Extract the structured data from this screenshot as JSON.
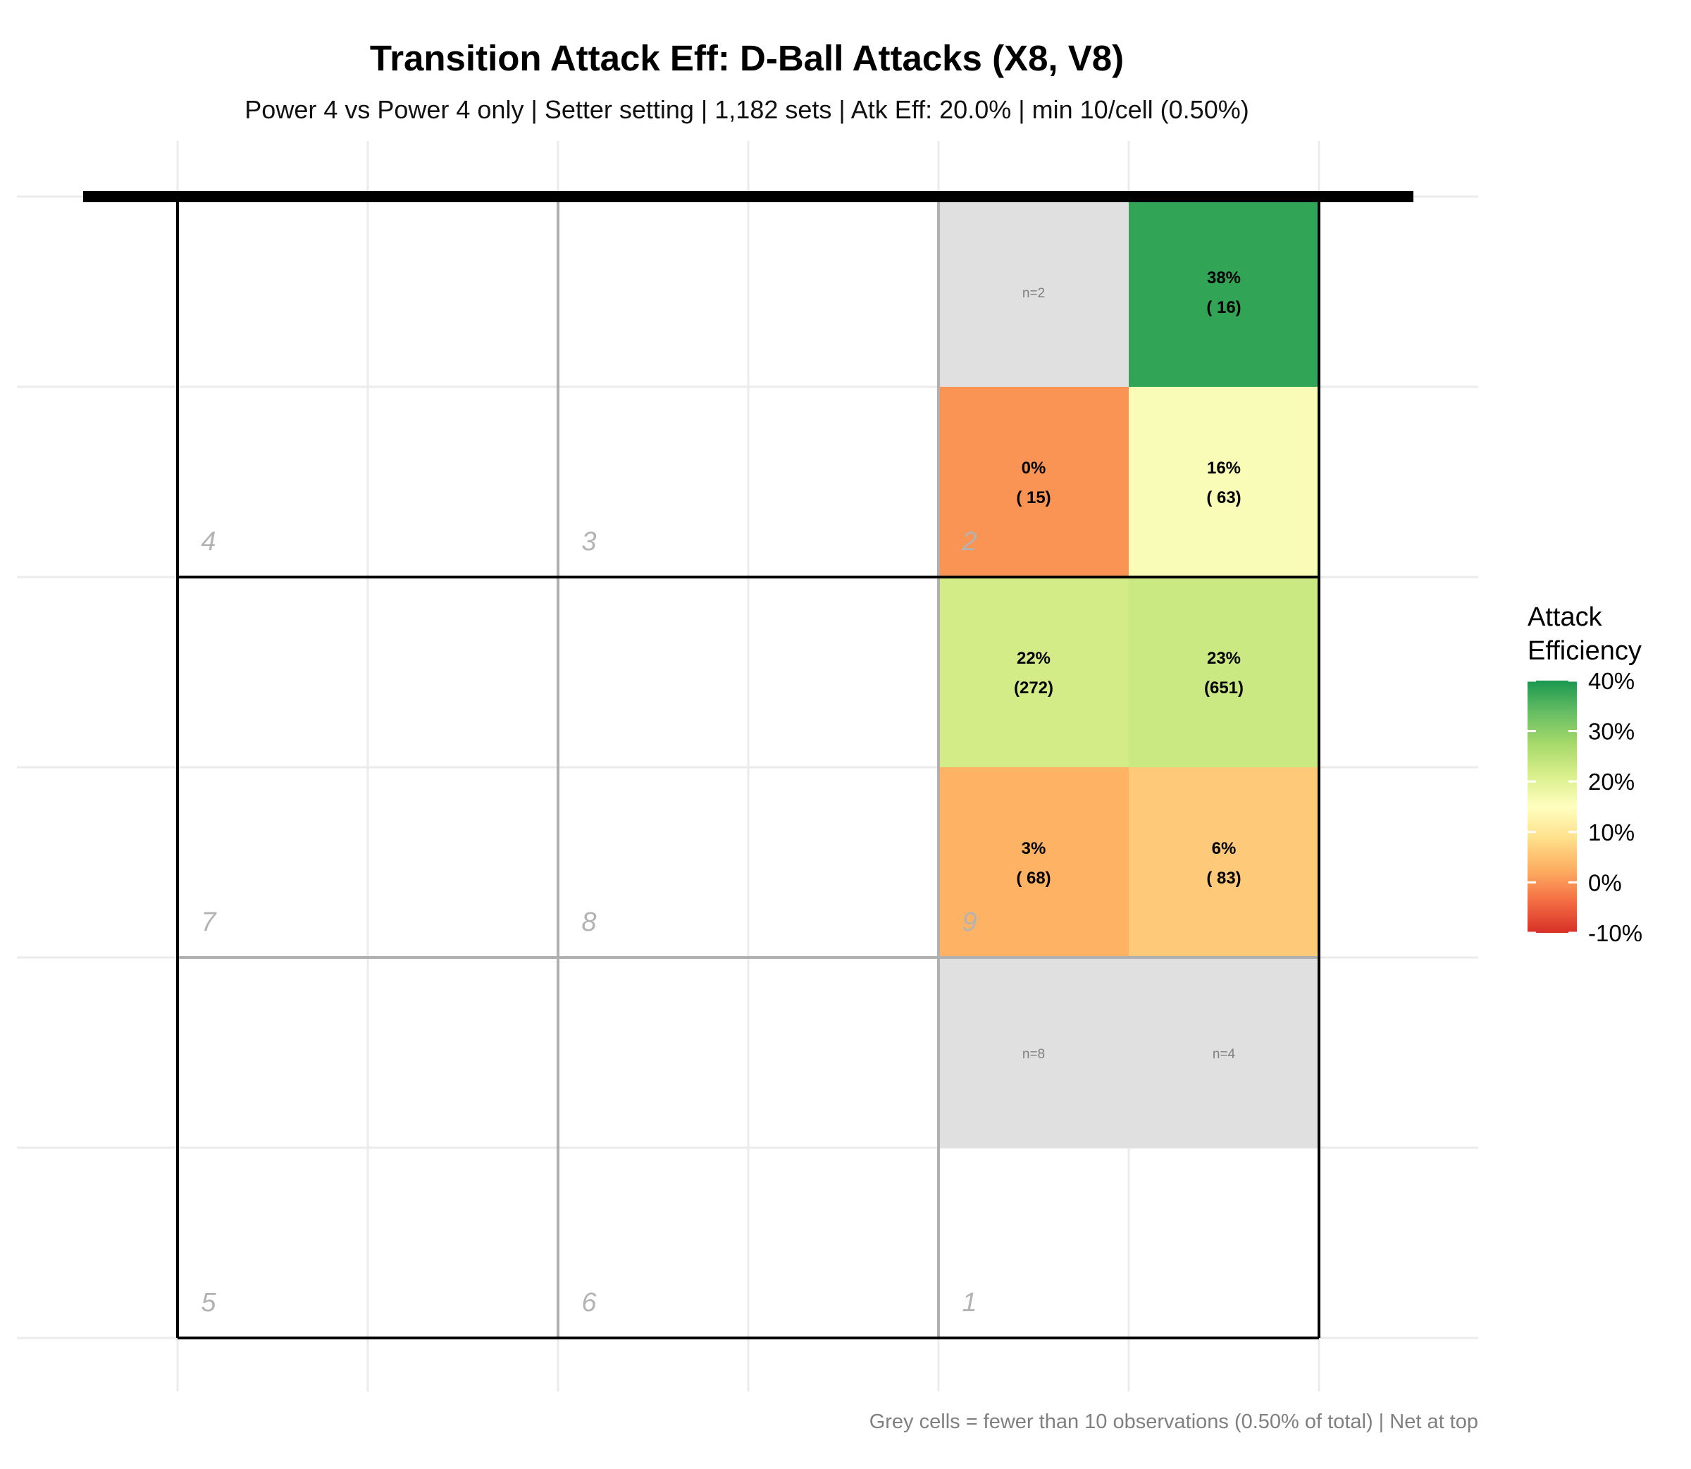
{
  "chart_data": {
    "type": "heatmap",
    "title": "Transition Attack Eff: D-Ball Attacks (X8, V8)",
    "subtitle": "Power 4 vs Power 4 only | Setter setting | 1,182 sets | Atk Eff: 20.0% | min 10/cell (0.50%)",
    "caption": "Grey cells = fewer than 10 observations (0.50% of total) | Net at top",
    "x_range": [
      0,
      6
    ],
    "y_range": [
      0,
      6
    ],
    "net_position": "top",
    "zones": [
      {
        "label": "4",
        "col": 0,
        "row": 0
      },
      {
        "label": "3",
        "col": 1,
        "row": 0
      },
      {
        "label": "2",
        "col": 2,
        "row": 0
      },
      {
        "label": "7",
        "col": 0,
        "row": 1
      },
      {
        "label": "8",
        "col": 1,
        "row": 1
      },
      {
        "label": "9",
        "col": 2,
        "row": 1
      },
      {
        "label": "5",
        "col": 0,
        "row": 2
      },
      {
        "label": "6",
        "col": 1,
        "row": 2
      },
      {
        "label": "1",
        "col": 2,
        "row": 2
      }
    ],
    "cells": [
      {
        "col": 4,
        "row": 0,
        "n": 2,
        "eff": null,
        "eff_label": "",
        "n_label": "",
        "grey_label": "n=2"
      },
      {
        "col": 5,
        "row": 0,
        "n": 16,
        "eff": 38,
        "eff_label": "38%",
        "n_label": "( 16)",
        "grey_label": ""
      },
      {
        "col": 4,
        "row": 1,
        "n": 15,
        "eff": 0,
        "eff_label": "0%",
        "n_label": "( 15)",
        "grey_label": ""
      },
      {
        "col": 5,
        "row": 1,
        "n": 63,
        "eff": 16,
        "eff_label": "16%",
        "n_label": "( 63)",
        "grey_label": ""
      },
      {
        "col": 4,
        "row": 2,
        "n": 272,
        "eff": 22,
        "eff_label": "22%",
        "n_label": "(272)",
        "grey_label": ""
      },
      {
        "col": 5,
        "row": 2,
        "n": 651,
        "eff": 23,
        "eff_label": "23%",
        "n_label": "(651)",
        "grey_label": ""
      },
      {
        "col": 4,
        "row": 3,
        "n": 68,
        "eff": 3,
        "eff_label": "3%",
        "n_label": "( 68)",
        "grey_label": ""
      },
      {
        "col": 5,
        "row": 3,
        "n": 83,
        "eff": 6,
        "eff_label": "6%",
        "n_label": "( 83)",
        "grey_label": ""
      },
      {
        "col": 4,
        "row": 4,
        "n": 8,
        "eff": null,
        "eff_label": "",
        "n_label": "",
        "grey_label": "n=8"
      },
      {
        "col": 5,
        "row": 4,
        "n": 4,
        "eff": null,
        "eff_label": "",
        "n_label": "",
        "grey_label": "n=4"
      }
    ],
    "legend": {
      "title_line1": "Attack",
      "title_line2": "Efficiency",
      "min": -10,
      "max": 40,
      "ticks": [
        {
          "value": 40,
          "label": "40%"
        },
        {
          "value": 30,
          "label": "30%"
        },
        {
          "value": 20,
          "label": "20%"
        },
        {
          "value": 10,
          "label": "10%"
        },
        {
          "value": 0,
          "label": "0%"
        },
        {
          "value": -10,
          "label": "-10%"
        }
      ]
    },
    "colors": {
      "grey_cell": "#e0e0e0",
      "grid": "#ebebeb",
      "court_line": "#000000",
      "zone_line": "#b0b0b0",
      "net": "#000000",
      "scale": [
        "#d73027",
        "#f46d43",
        "#fdae61",
        "#fee08b",
        "#ffffbf",
        "#d9ef8b",
        "#a6d96a",
        "#66bd63",
        "#1a9850"
      ]
    }
  }
}
